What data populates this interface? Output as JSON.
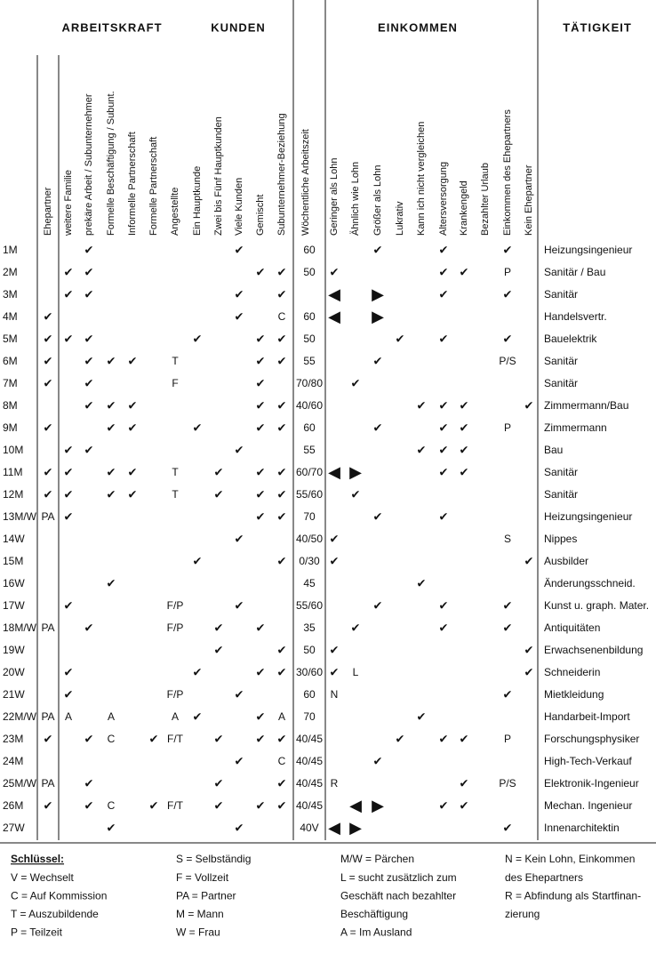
{
  "sections": [
    "ARBEITSKRAFT",
    "KUNDEN",
    "EINKOMMEN",
    "TÄTIGKEIT"
  ],
  "columns": [
    "Ehepartner",
    "weitere Familie",
    "prekäre Arbeit / Subunternehmer",
    "Formelle Beschäftigung / Subunt.",
    "Informelle Partnerschaft",
    "Formelle Partnerschaft",
    "Angestellte",
    "Ein Hauptkunde",
    "Zwei bis Fünf Hauptkunden",
    "Viele Kunden",
    "Gemischt",
    "Subunternehmer-Beziehung",
    "Wöchentliche Arbeitszeit",
    "Geringer als Lohn",
    "Ähnlich wie Lohn",
    "Größer als Lohn",
    "Lukrativ",
    "Kann ich nicht vergleichen",
    "Altersversorgung",
    "Krankengeld",
    "Bezahlter Urlaub",
    "Einkommen des Ehepartners",
    "Kein Ehepartner"
  ],
  "rows": [
    {
      "label": "1M",
      "cells": [
        null,
        null,
        "✔",
        null,
        null,
        null,
        null,
        null,
        null,
        "✔",
        null,
        null,
        "60",
        null,
        null,
        "✔",
        null,
        null,
        "✔",
        null,
        null,
        "✔",
        null
      ],
      "activity": "Heizungsingenieur"
    },
    {
      "label": "2M",
      "cells": [
        null,
        "✔",
        "✔",
        null,
        null,
        null,
        null,
        null,
        null,
        null,
        "✔",
        "✔",
        "50",
        "✔",
        null,
        null,
        null,
        null,
        "✔",
        "✔",
        null,
        "P",
        null
      ],
      "activity": "Sanitär / Bau"
    },
    {
      "label": "3M",
      "cells": [
        null,
        "✔",
        "✔",
        null,
        null,
        null,
        null,
        null,
        null,
        "✔",
        null,
        "✔",
        null,
        "◀",
        null,
        "▶",
        null,
        null,
        "✔",
        null,
        null,
        "✔",
        null
      ],
      "activity": "Sanitär"
    },
    {
      "label": "4M",
      "cells": [
        "✔",
        null,
        null,
        null,
        null,
        null,
        null,
        null,
        null,
        "✔",
        null,
        "C",
        "60",
        "◀",
        null,
        "▶",
        null,
        null,
        null,
        null,
        null,
        null,
        null
      ],
      "activity": "Handelsvertr."
    },
    {
      "label": "5M",
      "cells": [
        "✔",
        "✔",
        "✔",
        null,
        null,
        null,
        null,
        "✔",
        null,
        null,
        "✔",
        "✔",
        "50",
        null,
        null,
        null,
        "✔",
        null,
        "✔",
        null,
        null,
        "✔",
        null
      ],
      "activity": "Bauelektrik"
    },
    {
      "label": "6M",
      "cells": [
        "✔",
        null,
        "✔",
        "✔",
        "✔",
        null,
        "T",
        null,
        null,
        null,
        "✔",
        "✔",
        "55",
        null,
        null,
        "✔",
        null,
        null,
        null,
        null,
        null,
        "P/S",
        null
      ],
      "activity": "Sanitär"
    },
    {
      "label": "7M",
      "cells": [
        "✔",
        null,
        "✔",
        null,
        null,
        null,
        "F",
        null,
        null,
        null,
        "✔",
        null,
        "70/80",
        null,
        "✔",
        null,
        null,
        null,
        null,
        null,
        null,
        null,
        null
      ],
      "activity": "Sanitär"
    },
    {
      "label": "8M",
      "cells": [
        null,
        null,
        "✔",
        "✔",
        "✔",
        null,
        null,
        null,
        null,
        null,
        "✔",
        "✔",
        "40/60",
        null,
        null,
        null,
        null,
        "✔",
        "✔",
        "✔",
        null,
        null,
        "✔"
      ],
      "activity": "Zimmermann/Bau"
    },
    {
      "label": "9M",
      "cells": [
        "✔",
        null,
        null,
        "✔",
        "✔",
        null,
        null,
        "✔",
        null,
        null,
        "✔",
        "✔",
        "60",
        null,
        null,
        "✔",
        null,
        null,
        "✔",
        "✔",
        null,
        "P",
        null
      ],
      "activity": "Zimmermann"
    },
    {
      "label": "10M",
      "cells": [
        null,
        "✔",
        "✔",
        null,
        null,
        null,
        null,
        null,
        null,
        "✔",
        null,
        null,
        "55",
        null,
        null,
        null,
        null,
        "✔",
        "✔",
        "✔",
        null,
        null,
        null
      ],
      "activity": "Bau"
    },
    {
      "label": "11M",
      "cells": [
        "✔",
        "✔",
        null,
        "✔",
        "✔",
        null,
        "T",
        null,
        "✔",
        null,
        "✔",
        "✔",
        "60/70",
        "◀",
        "▶",
        null,
        null,
        null,
        "✔",
        "✔",
        null,
        null,
        null
      ],
      "activity": "Sanitär"
    },
    {
      "label": "12M",
      "cells": [
        "✔",
        "✔",
        null,
        "✔",
        "✔",
        null,
        "T",
        null,
        "✔",
        null,
        "✔",
        "✔",
        "55/60",
        null,
        "✔",
        null,
        null,
        null,
        null,
        null,
        null,
        null,
        null
      ],
      "activity": "Sanitär"
    },
    {
      "label": "13M/W",
      "cells": [
        "PA",
        "✔",
        null,
        null,
        null,
        null,
        null,
        null,
        null,
        null,
        "✔",
        "✔",
        "70",
        null,
        null,
        "✔",
        null,
        null,
        "✔",
        null,
        null,
        null,
        null
      ],
      "activity": "Heizungsingenieur"
    },
    {
      "label": "14W",
      "cells": [
        null,
        null,
        null,
        null,
        null,
        null,
        null,
        null,
        null,
        "✔",
        null,
        null,
        "40/50",
        "✔",
        null,
        null,
        null,
        null,
        null,
        null,
        null,
        "S",
        null
      ],
      "activity": "Nippes"
    },
    {
      "label": "15M",
      "cells": [
        null,
        null,
        null,
        null,
        null,
        null,
        null,
        "✔",
        null,
        null,
        null,
        "✔",
        "0/30",
        "✔",
        null,
        null,
        null,
        null,
        null,
        null,
        null,
        null,
        "✔"
      ],
      "activity": "Ausbilder"
    },
    {
      "label": "16W",
      "cells": [
        null,
        null,
        null,
        "✔",
        null,
        null,
        null,
        null,
        null,
        null,
        null,
        null,
        "45",
        null,
        null,
        null,
        null,
        "✔",
        null,
        null,
        null,
        null,
        null
      ],
      "activity": "Änderungsschneid."
    },
    {
      "label": "17W",
      "cells": [
        null,
        "✔",
        null,
        null,
        null,
        null,
        "F/P",
        null,
        null,
        "✔",
        null,
        null,
        "55/60",
        null,
        null,
        "✔",
        null,
        null,
        "✔",
        null,
        null,
        "✔",
        null
      ],
      "activity": "Kunst u. graph. Mater."
    },
    {
      "label": "18M/W",
      "cells": [
        "PA",
        null,
        "✔",
        null,
        null,
        null,
        "F/P",
        null,
        "✔",
        null,
        "✔",
        null,
        "35",
        null,
        "✔",
        null,
        null,
        null,
        "✔",
        null,
        null,
        "✔",
        null
      ],
      "activity": "Antiquitäten"
    },
    {
      "label": "19W",
      "cells": [
        null,
        null,
        null,
        null,
        null,
        null,
        null,
        null,
        "✔",
        null,
        null,
        "✔",
        "50",
        "✔",
        null,
        null,
        null,
        null,
        null,
        null,
        null,
        null,
        "✔"
      ],
      "activity": "Erwachsenenbildung"
    },
    {
      "label": "20W",
      "cells": [
        null,
        "✔",
        null,
        null,
        null,
        null,
        null,
        "✔",
        null,
        null,
        "✔",
        "✔",
        "30/60",
        "✔",
        "L",
        null,
        null,
        null,
        null,
        null,
        null,
        null,
        "✔"
      ],
      "activity": "Schneiderin"
    },
    {
      "label": "21W",
      "cells": [
        null,
        "✔",
        null,
        null,
        null,
        null,
        "F/P",
        null,
        null,
        "✔",
        null,
        null,
        "60",
        "N",
        null,
        null,
        null,
        null,
        null,
        null,
        null,
        "✔",
        null
      ],
      "activity": "Mietkleidung"
    },
    {
      "label": "22M/W",
      "cells": [
        "PA",
        "A",
        null,
        "A",
        null,
        null,
        "A",
        "✔",
        null,
        null,
        "✔",
        "A",
        "70",
        null,
        null,
        null,
        null,
        "✔",
        null,
        null,
        null,
        null,
        null
      ],
      "activity": "Handarbeit-Import"
    },
    {
      "label": "23M",
      "cells": [
        "✔",
        null,
        "✔",
        "C",
        null,
        "✔",
        "F/T",
        null,
        "✔",
        null,
        "✔",
        "✔",
        "40/45",
        null,
        null,
        null,
        "✔",
        null,
        "✔",
        "✔",
        null,
        "P",
        null
      ],
      "activity": "Forschungsphysiker"
    },
    {
      "label": "24M",
      "cells": [
        null,
        null,
        null,
        null,
        null,
        null,
        null,
        null,
        null,
        "✔",
        null,
        "C",
        "40/45",
        null,
        null,
        "✔",
        null,
        null,
        null,
        null,
        null,
        null,
        null
      ],
      "activity": "High-Tech-Verkauf"
    },
    {
      "label": "25M/W",
      "cells": [
        "PA",
        null,
        "✔",
        null,
        null,
        null,
        null,
        null,
        "✔",
        null,
        null,
        "✔",
        "40/45",
        "R",
        null,
        null,
        null,
        null,
        null,
        "✔",
        null,
        "P/S",
        null
      ],
      "activity": "Elektronik-Ingenieur"
    },
    {
      "label": "26M",
      "cells": [
        "✔",
        null,
        "✔",
        "C",
        null,
        "✔",
        "F/T",
        null,
        "✔",
        null,
        "✔",
        "✔",
        "40/45",
        null,
        "◀",
        "▶",
        null,
        null,
        "✔",
        "✔",
        null,
        null,
        null
      ],
      "activity": "Mechan. Ingenieur"
    },
    {
      "label": "27W",
      "cells": [
        null,
        null,
        null,
        "✔",
        null,
        null,
        null,
        null,
        null,
        "✔",
        null,
        null,
        "40V",
        "◀",
        "▶",
        null,
        null,
        null,
        null,
        null,
        null,
        "✔",
        null
      ],
      "activity": "Innenarchitektin"
    }
  ],
  "key": [
    [
      "Schlüssel:",
      "V = Wechselt",
      "C = Auf Kommission",
      "T = Auszubildende",
      "P = Teilzeit"
    ],
    [
      "S = Selbständig",
      "F = Vollzeit",
      "PA = Partner",
      "M = Mann",
      "W = Frau"
    ],
    [
      "M/W = Pärchen",
      "L = sucht zusätzlich zum",
      "Geschäft nach bezahlter",
      "Beschäftigung",
      "A = Im Ausland"
    ],
    [
      "N = Kein Lohn, Einkommen",
      "des Ehepartners",
      "R = Abfindung als Startfinan-",
      "zierung"
    ]
  ]
}
